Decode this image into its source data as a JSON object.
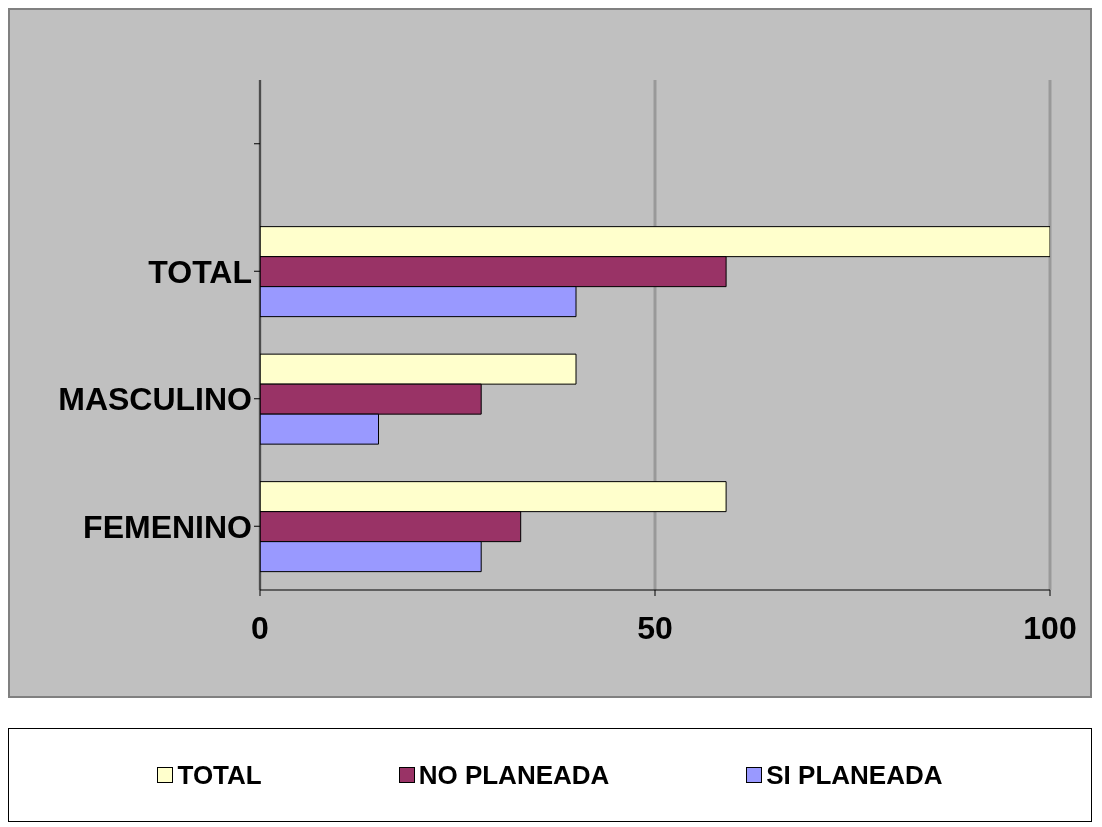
{
  "chart_data": {
    "type": "bar",
    "orientation": "horizontal",
    "categories": [
      null,
      "TOTAL",
      "MASCULINO",
      "FEMENINO"
    ],
    "series": [
      {
        "name": "TOTAL",
        "color": "#ffffcc",
        "values": [
          null,
          100,
          40,
          59
        ]
      },
      {
        "name": "NO PLANEADA",
        "color": "#993366",
        "values": [
          null,
          59,
          28,
          33
        ]
      },
      {
        "name": "SI PLANEADA",
        "color": "#9999ff",
        "values": [
          null,
          40,
          15,
          28
        ]
      }
    ],
    "xlim": [
      0,
      100
    ],
    "xticks": [
      0,
      50,
      100
    ],
    "grid": "x",
    "legend": "bottom"
  }
}
